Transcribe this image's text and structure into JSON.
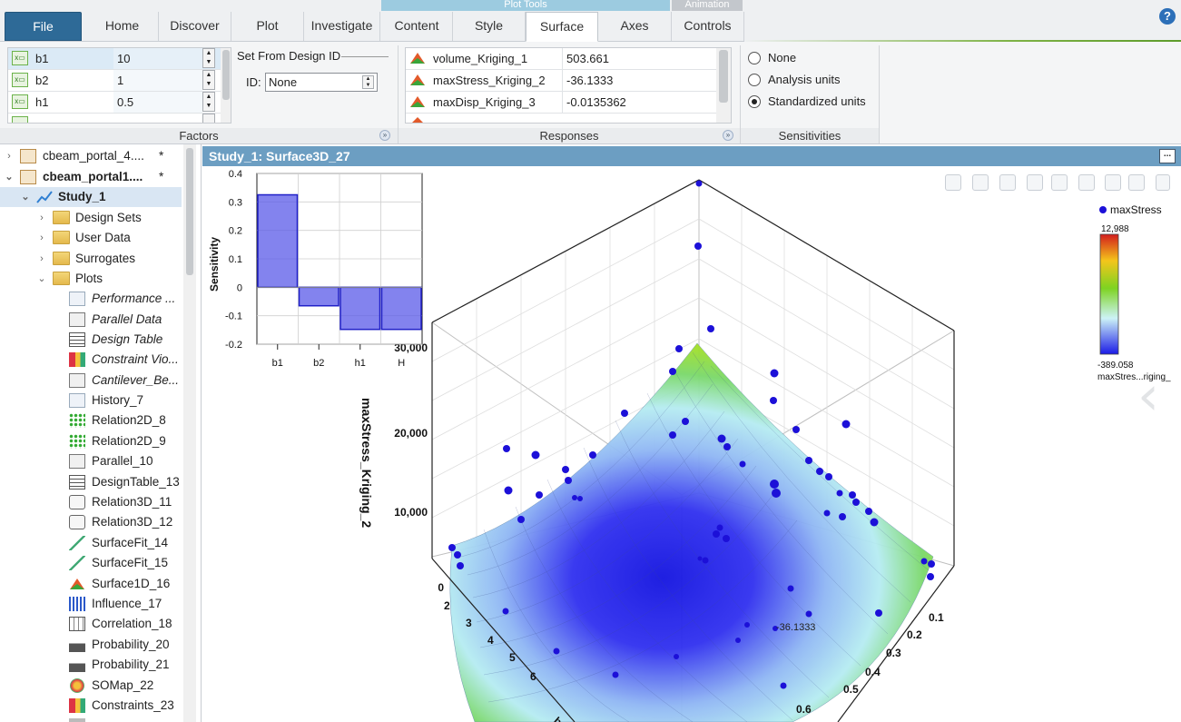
{
  "ribbon": {
    "context_groups": [
      "Plot Tools",
      "Animation"
    ],
    "tabs": [
      "File",
      "Home",
      "Discover",
      "Plot",
      "Investigate",
      "Content",
      "Style",
      "Surface",
      "Axes",
      "Controls"
    ],
    "active_tab": "Surface",
    "help_label": "?",
    "factors": {
      "label": "Factors",
      "rows": [
        {
          "name": "b1",
          "value": "10"
        },
        {
          "name": "b2",
          "value": "1"
        },
        {
          "name": "h1",
          "value": "0.5"
        }
      ]
    },
    "design_id": {
      "group_label": "Set From Design ID",
      "id_label": "ID:",
      "value": "None"
    },
    "responses": {
      "label": "Responses",
      "rows": [
        {
          "name": "volume_Kriging_1",
          "value": "503.661"
        },
        {
          "name": "maxStress_Kriging_2",
          "value": "-36.1333"
        },
        {
          "name": "maxDisp_Kriging_3",
          "value": "-0.0135362"
        }
      ]
    },
    "sensitivities": {
      "label": "Sensitivities",
      "options": [
        "None",
        "Analysis units",
        "Standardized units"
      ],
      "selected": "Standardized units"
    }
  },
  "tree": {
    "items": [
      {
        "label": "cbeam_portal_4....",
        "star": "*",
        "bold": false
      },
      {
        "label": "cbeam_portal1....",
        "star": "*",
        "bold": true
      },
      {
        "label": "Study_1",
        "bold": true
      },
      {
        "label": "Design Sets"
      },
      {
        "label": "User Data"
      },
      {
        "label": "Surrogates"
      },
      {
        "label": "Plots"
      },
      {
        "label": "Performance ..."
      },
      {
        "label": "Parallel Data"
      },
      {
        "label": "Design Table"
      },
      {
        "label": "Constraint Vio..."
      },
      {
        "label": "Cantilever_Be..."
      },
      {
        "label": "History_7"
      },
      {
        "label": "Relation2D_8"
      },
      {
        "label": "Relation2D_9"
      },
      {
        "label": "Parallel_10"
      },
      {
        "label": "DesignTable_13"
      },
      {
        "label": "Relation3D_11"
      },
      {
        "label": "Relation3D_12"
      },
      {
        "label": "SurfaceFit_14"
      },
      {
        "label": "SurfaceFit_15"
      },
      {
        "label": "Surface1D_16"
      },
      {
        "label": "Influence_17"
      },
      {
        "label": "Correlation_18"
      },
      {
        "label": "Probability_20"
      },
      {
        "label": "Probability_21"
      },
      {
        "label": "SOMap_22"
      },
      {
        "label": "Constraints_23"
      }
    ]
  },
  "plot": {
    "title": "Study_1: Surface3D_27",
    "menu_label": "...",
    "zaxis_label": "maxStress_Kriging_2",
    "z_ticks": [
      "0",
      "10,000",
      "20,000",
      "30,000"
    ],
    "left_ticks": [
      "2",
      "3",
      "4",
      "5",
      "6"
    ],
    "right_ticks": [
      "0.1",
      "0.2",
      "0.3",
      "0.4",
      "0.5",
      "0.6"
    ],
    "left_axis_fragment": "b",
    "point_label": "-36.1333",
    "legend": {
      "series": "maxStress",
      "max": "12,988",
      "min": "-389.058",
      "caption": "maxStres...riging_"
    }
  },
  "chart_data": {
    "type": "bar",
    "categories": [
      "b1",
      "b2",
      "h1",
      "H"
    ],
    "values": [
      0.325,
      -0.065,
      -0.148,
      -0.148
    ],
    "ylabel": "Sensitivity",
    "ylim": [
      -0.2,
      0.4
    ],
    "yticks": [
      -0.2,
      -0.1,
      0,
      0.1,
      0.2,
      0.3,
      0.4
    ]
  },
  "colors": {
    "accent": "#2e6a97",
    "header": "#6c9ec2",
    "bar": "#5a5ae8"
  }
}
